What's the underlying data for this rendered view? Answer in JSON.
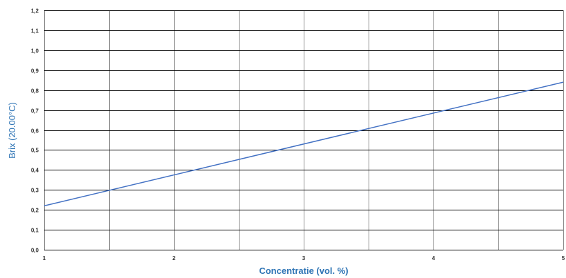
{
  "chart_data": {
    "type": "line",
    "title": "",
    "xlabel": "Concentratie (vol. %)",
    "ylabel": "Brix (20.00°C)",
    "xlim": [
      1,
      5
    ],
    "ylim": [
      0.0,
      1.2
    ],
    "x_tick_labels": [
      "1",
      "2",
      "3",
      "4",
      "5"
    ],
    "y_tick_labels": [
      "0,0",
      "0,1",
      "0,2",
      "0,3",
      "0,4",
      "0,5",
      "0,6",
      "0,7",
      "0,8",
      "0,9",
      "1,0",
      "1,1",
      "1,2"
    ],
    "grid": true,
    "legend": "none",
    "line_color": "#4472c4",
    "axis_title_color": "#2e74b5",
    "series": [
      {
        "x": [
          1,
          5
        ],
        "values": [
          0.22,
          0.84
        ]
      }
    ]
  }
}
